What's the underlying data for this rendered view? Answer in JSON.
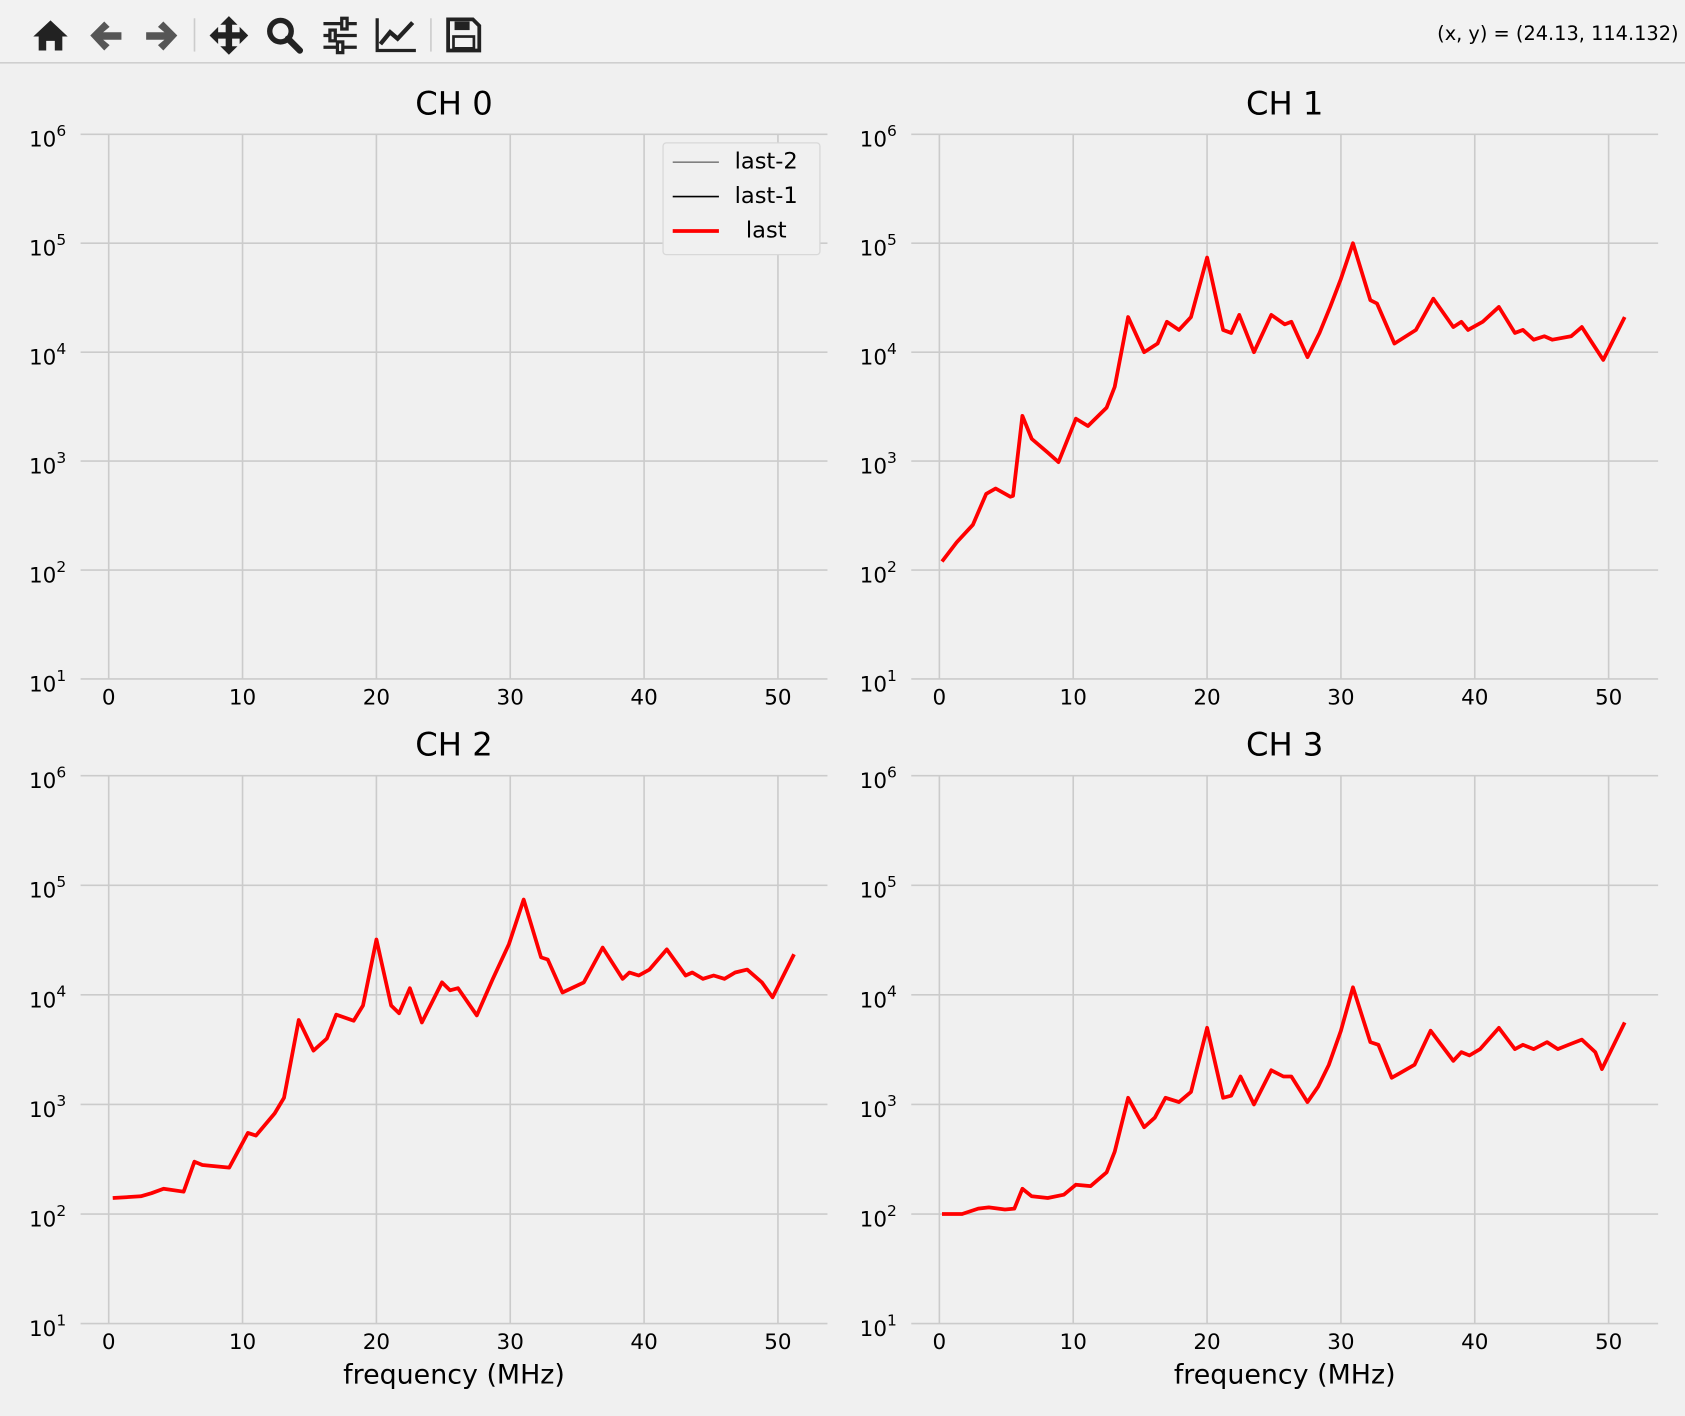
{
  "toolbar": {
    "status": "(x, y) = (24.13, 114.132)"
  },
  "chart_data": [
    {
      "type": "line",
      "title": "CH 0",
      "log": true,
      "grid": true,
      "legend": "upper right",
      "xlim": [
        -2.1,
        53.7
      ],
      "xticks": [
        0,
        10,
        20,
        30,
        40,
        50
      ],
      "ylim": [
        10,
        1000000
      ],
      "yticks": [
        {
          "value": 10,
          "label": "10^1"
        },
        {
          "value": 100,
          "label": "10^2"
        },
        {
          "value": 1000,
          "label": "10^3"
        },
        {
          "value": 10000,
          "label": "10^4"
        },
        {
          "value": 100000,
          "label": "10^5"
        },
        {
          "value": 1000000,
          "label": "10^6"
        }
      ],
      "x": [],
      "series": [
        {
          "name": "last-2",
          "color": "#808080",
          "values": []
        },
        {
          "name": "last-1",
          "color": "#000000",
          "values": []
        },
        {
          "name": "last",
          "color": "#ff0000",
          "values": []
        }
      ]
    },
    {
      "type": "line",
      "title": "CH 1",
      "log": true,
      "grid": true,
      "xlim": [
        -2.1,
        53.7
      ],
      "xticks": [
        0,
        10,
        20,
        30,
        40,
        50
      ],
      "ylim": [
        10,
        1000000
      ],
      "yticks": [
        {
          "value": 10,
          "label": "10^1"
        },
        {
          "value": 100,
          "label": "10^2"
        },
        {
          "value": 1000,
          "label": "10^3"
        },
        {
          "value": 10000,
          "label": "10^4"
        },
        {
          "value": 100000,
          "label": "10^5"
        },
        {
          "value": 1000000,
          "label": "10^6"
        }
      ],
      "x": [
        0.2,
        1.3,
        2.5,
        3.5,
        4.2,
        5.3,
        5.5,
        6.2,
        6.9,
        8.1,
        8.9,
        10.2,
        11.1,
        12.5,
        13.1,
        14.1,
        15.3,
        16.3,
        17.0,
        17.9,
        18.8,
        20.0,
        21.2,
        21.8,
        22.4,
        23.5,
        24.8,
        25.8,
        26.3,
        27.5,
        28.4,
        29.2,
        30.0,
        30.9,
        32.2,
        32.7,
        34.0,
        35.6,
        36.9,
        38.4,
        39.0,
        39.5,
        40.6,
        41.8,
        43.0,
        43.6,
        44.4,
        45.2,
        45.8,
        47.2,
        48.0,
        48.8,
        49.6,
        51.2
      ],
      "series": [
        {
          "name": "last",
          "color": "#ff0000",
          "values": [
            120,
            180,
            260,
            500,
            560,
            470,
            480,
            2600,
            1600,
            1200,
            980,
            2450,
            2100,
            3100,
            4800,
            21000,
            10000,
            12000,
            19000,
            16000,
            21000,
            74000,
            16000,
            15000,
            22000,
            10000,
            22000,
            18000,
            19000,
            9000,
            15000,
            26000,
            47000,
            100000,
            30000,
            28000,
            12000,
            16000,
            31000,
            17000,
            19000,
            16000,
            19000,
            26000,
            15000,
            16000,
            13000,
            14000,
            13000,
            14000,
            17000,
            12000,
            8500,
            21000
          ]
        }
      ]
    },
    {
      "type": "line",
      "title": "CH 2",
      "xlabel": "frequency (MHz)",
      "log": true,
      "grid": true,
      "xlim": [
        -2.1,
        53.7
      ],
      "xticks": [
        0,
        10,
        20,
        30,
        40,
        50
      ],
      "ylim": [
        10,
        1000000
      ],
      "yticks": [
        {
          "value": 10,
          "label": "10^1"
        },
        {
          "value": 100,
          "label": "10^2"
        },
        {
          "value": 1000,
          "label": "10^3"
        },
        {
          "value": 10000,
          "label": "10^4"
        },
        {
          "value": 100000,
          "label": "10^5"
        },
        {
          "value": 1000000,
          "label": "10^6"
        }
      ],
      "x": [
        0.3,
        2.4,
        3.2,
        4.1,
        5.6,
        6.4,
        7.0,
        9.0,
        10.4,
        11.0,
        12.4,
        13.1,
        14.2,
        15.3,
        16.3,
        17.0,
        18.3,
        19.0,
        20.0,
        21.1,
        21.7,
        22.5,
        23.4,
        24.9,
        25.5,
        26.1,
        27.5,
        28.7,
        29.9,
        31.0,
        32.3,
        32.8,
        33.9,
        35.5,
        36.9,
        38.4,
        38.9,
        39.6,
        40.4,
        41.7,
        43.1,
        43.6,
        44.4,
        45.2,
        46.0,
        46.8,
        47.7,
        48.8,
        49.6,
        51.2
      ],
      "series": [
        {
          "name": "last",
          "color": "#ff0000",
          "values": [
            140,
            145,
            155,
            170,
            160,
            300,
            280,
            265,
            550,
            520,
            830,
            1150,
            5900,
            3100,
            4000,
            6600,
            5800,
            8000,
            32000,
            8000,
            6800,
            11500,
            5600,
            13000,
            11000,
            11500,
            6500,
            14000,
            29000,
            74000,
            22000,
            21000,
            10500,
            13000,
            27000,
            14000,
            16000,
            15000,
            17000,
            26000,
            15000,
            16000,
            14000,
            15000,
            14000,
            16000,
            17000,
            13000,
            9500,
            23500
          ]
        }
      ]
    },
    {
      "type": "line",
      "title": "CH 3",
      "xlabel": "frequency (MHz)",
      "log": true,
      "grid": true,
      "xlim": [
        -2.1,
        53.7
      ],
      "xticks": [
        0,
        10,
        20,
        30,
        40,
        50
      ],
      "ylim": [
        10,
        1000000
      ],
      "yticks": [
        {
          "value": 10,
          "label": "10^1"
        },
        {
          "value": 100,
          "label": "10^2"
        },
        {
          "value": 1000,
          "label": "10^3"
        },
        {
          "value": 10000,
          "label": "10^4"
        },
        {
          "value": 100000,
          "label": "10^5"
        },
        {
          "value": 1000000,
          "label": "10^6"
        }
      ],
      "x": [
        0.2,
        1.7,
        2.9,
        3.7,
        4.9,
        5.6,
        6.2,
        6.9,
        8.1,
        9.3,
        10.2,
        11.3,
        12.5,
        13.1,
        14.1,
        15.3,
        16.1,
        16.9,
        17.9,
        18.8,
        20.0,
        21.2,
        21.8,
        22.5,
        23.5,
        24.8,
        25.7,
        26.3,
        27.5,
        28.3,
        29.1,
        30.0,
        30.9,
        32.2,
        32.8,
        33.8,
        35.5,
        36.7,
        38.4,
        39.0,
        39.6,
        40.4,
        41.8,
        43.0,
        43.6,
        44.4,
        45.4,
        46.2,
        47.0,
        48.0,
        49.0,
        49.5,
        51.2
      ],
      "series": [
        {
          "name": "last",
          "color": "#ff0000",
          "values": [
            100,
            100,
            112,
            115,
            110,
            112,
            170,
            145,
            140,
            150,
            185,
            180,
            240,
            370,
            1150,
            620,
            760,
            1150,
            1050,
            1300,
            5000,
            1150,
            1200,
            1800,
            1000,
            2050,
            1800,
            1800,
            1050,
            1450,
            2300,
            4700,
            11700,
            3700,
            3500,
            1750,
            2300,
            4700,
            2500,
            3000,
            2800,
            3200,
            5000,
            3200,
            3500,
            3200,
            3700,
            3200,
            3500,
            3900,
            3000,
            2100,
            5600
          ]
        }
      ]
    }
  ]
}
